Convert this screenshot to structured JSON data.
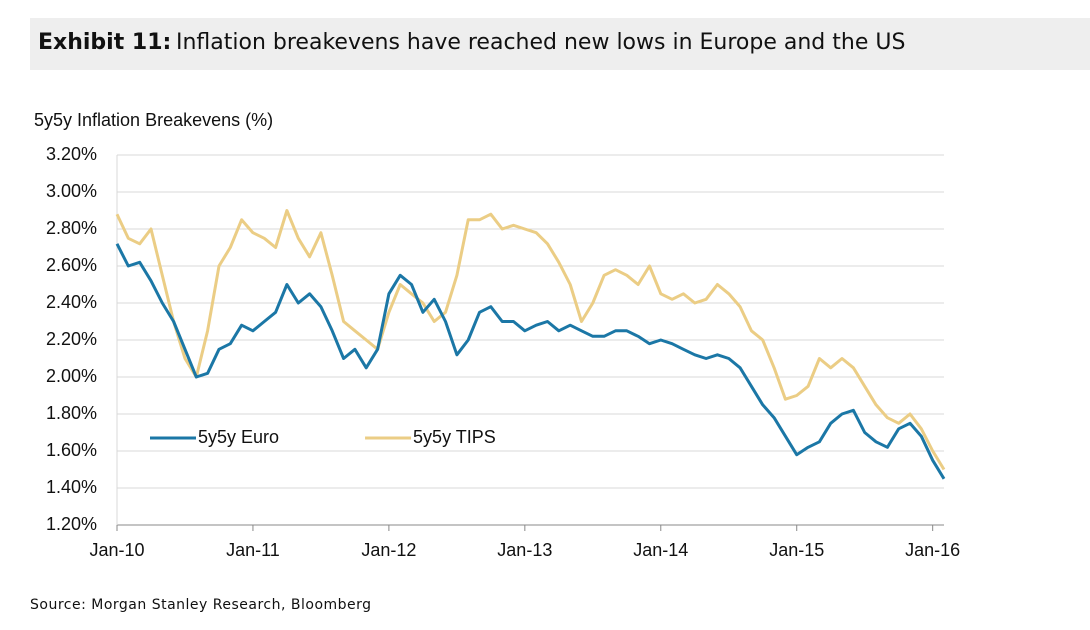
{
  "chart_data": {
    "type": "line",
    "title_label": "Exhibit 11:",
    "title": "Inflation breakevens have reached new lows in Europe and the US",
    "ylabel": "5y5y Inflation Breakevens (%)",
    "source": "Source: Morgan Stanley Research, Bloomberg",
    "x": [
      "2010-01",
      "2010-02",
      "2010-03",
      "2010-04",
      "2010-05",
      "2010-06",
      "2010-07",
      "2010-08",
      "2010-09",
      "2010-10",
      "2010-11",
      "2010-12",
      "2011-01",
      "2011-02",
      "2011-03",
      "2011-04",
      "2011-05",
      "2011-06",
      "2011-07",
      "2011-08",
      "2011-09",
      "2011-10",
      "2011-11",
      "2011-12",
      "2012-01",
      "2012-02",
      "2012-03",
      "2012-04",
      "2012-05",
      "2012-06",
      "2012-07",
      "2012-08",
      "2012-09",
      "2012-10",
      "2012-11",
      "2012-12",
      "2013-01",
      "2013-02",
      "2013-03",
      "2013-04",
      "2013-05",
      "2013-06",
      "2013-07",
      "2013-08",
      "2013-09",
      "2013-10",
      "2013-11",
      "2013-12",
      "2014-01",
      "2014-02",
      "2014-03",
      "2014-04",
      "2014-05",
      "2014-06",
      "2014-07",
      "2014-08",
      "2014-09",
      "2014-10",
      "2014-11",
      "2014-12",
      "2015-01",
      "2015-02",
      "2015-03",
      "2015-04",
      "2015-05",
      "2015-06",
      "2015-07",
      "2015-08",
      "2015-09",
      "2015-10",
      "2015-11",
      "2015-12",
      "2016-01",
      "2016-02"
    ],
    "series": [
      {
        "name": "5y5y Euro",
        "color": "#1b77a6",
        "values": [
          2.72,
          2.6,
          2.62,
          2.52,
          2.4,
          2.3,
          2.15,
          2.0,
          2.02,
          2.15,
          2.18,
          2.28,
          2.25,
          2.3,
          2.35,
          2.5,
          2.4,
          2.45,
          2.38,
          2.25,
          2.1,
          2.15,
          2.05,
          2.15,
          2.45,
          2.55,
          2.5,
          2.35,
          2.42,
          2.3,
          2.12,
          2.2,
          2.35,
          2.38,
          2.3,
          2.3,
          2.25,
          2.28,
          2.3,
          2.25,
          2.28,
          2.25,
          2.22,
          2.22,
          2.25,
          2.25,
          2.22,
          2.18,
          2.2,
          2.18,
          2.15,
          2.12,
          2.1,
          2.12,
          2.1,
          2.05,
          1.95,
          1.85,
          1.78,
          1.68,
          1.58,
          1.62,
          1.65,
          1.75,
          1.8,
          1.82,
          1.7,
          1.65,
          1.62,
          1.72,
          1.75,
          1.68,
          1.55,
          1.45
        ]
      },
      {
        "name": "5y5y TIPS",
        "color": "#ebcd85",
        "values": [
          2.88,
          2.75,
          2.72,
          2.8,
          2.55,
          2.3,
          2.1,
          2.0,
          2.25,
          2.6,
          2.7,
          2.85,
          2.78,
          2.75,
          2.7,
          2.9,
          2.75,
          2.65,
          2.78,
          2.55,
          2.3,
          2.25,
          2.2,
          2.15,
          2.35,
          2.5,
          2.45,
          2.4,
          2.3,
          2.35,
          2.55,
          2.85,
          2.85,
          2.88,
          2.8,
          2.82,
          2.8,
          2.78,
          2.72,
          2.62,
          2.5,
          2.3,
          2.4,
          2.55,
          2.58,
          2.55,
          2.5,
          2.6,
          2.45,
          2.42,
          2.45,
          2.4,
          2.42,
          2.5,
          2.45,
          2.38,
          2.25,
          2.2,
          2.05,
          1.88,
          1.9,
          1.95,
          2.1,
          2.05,
          2.1,
          2.05,
          1.95,
          1.85,
          1.78,
          1.75,
          1.8,
          1.72,
          1.6,
          1.5
        ]
      }
    ],
    "xlim": [
      "2010-01",
      "2016-02"
    ],
    "xticks": [
      {
        "value": "2010-01",
        "label": "Jan-10"
      },
      {
        "value": "2011-01",
        "label": "Jan-11"
      },
      {
        "value": "2012-01",
        "label": "Jan-12"
      },
      {
        "value": "2013-01",
        "label": "Jan-13"
      },
      {
        "value": "2014-01",
        "label": "Jan-14"
      },
      {
        "value": "2015-01",
        "label": "Jan-15"
      },
      {
        "value": "2016-01",
        "label": "Jan-16"
      }
    ],
    "ylim": [
      1.2,
      3.2
    ],
    "yticks": [
      {
        "value": 1.2,
        "label": "1.20%"
      },
      {
        "value": 1.4,
        "label": "1.40%"
      },
      {
        "value": 1.6,
        "label": "1.60%"
      },
      {
        "value": 1.8,
        "label": "1.80%"
      },
      {
        "value": 2.0,
        "label": "2.00%"
      },
      {
        "value": 2.2,
        "label": "2.20%"
      },
      {
        "value": 2.4,
        "label": "2.40%"
      },
      {
        "value": 2.6,
        "label": "2.60%"
      },
      {
        "value": 2.8,
        "label": "2.80%"
      },
      {
        "value": 3.0,
        "label": "3.00%"
      },
      {
        "value": 3.2,
        "label": "3.20%"
      }
    ],
    "grid": true,
    "legend": "lower left"
  }
}
